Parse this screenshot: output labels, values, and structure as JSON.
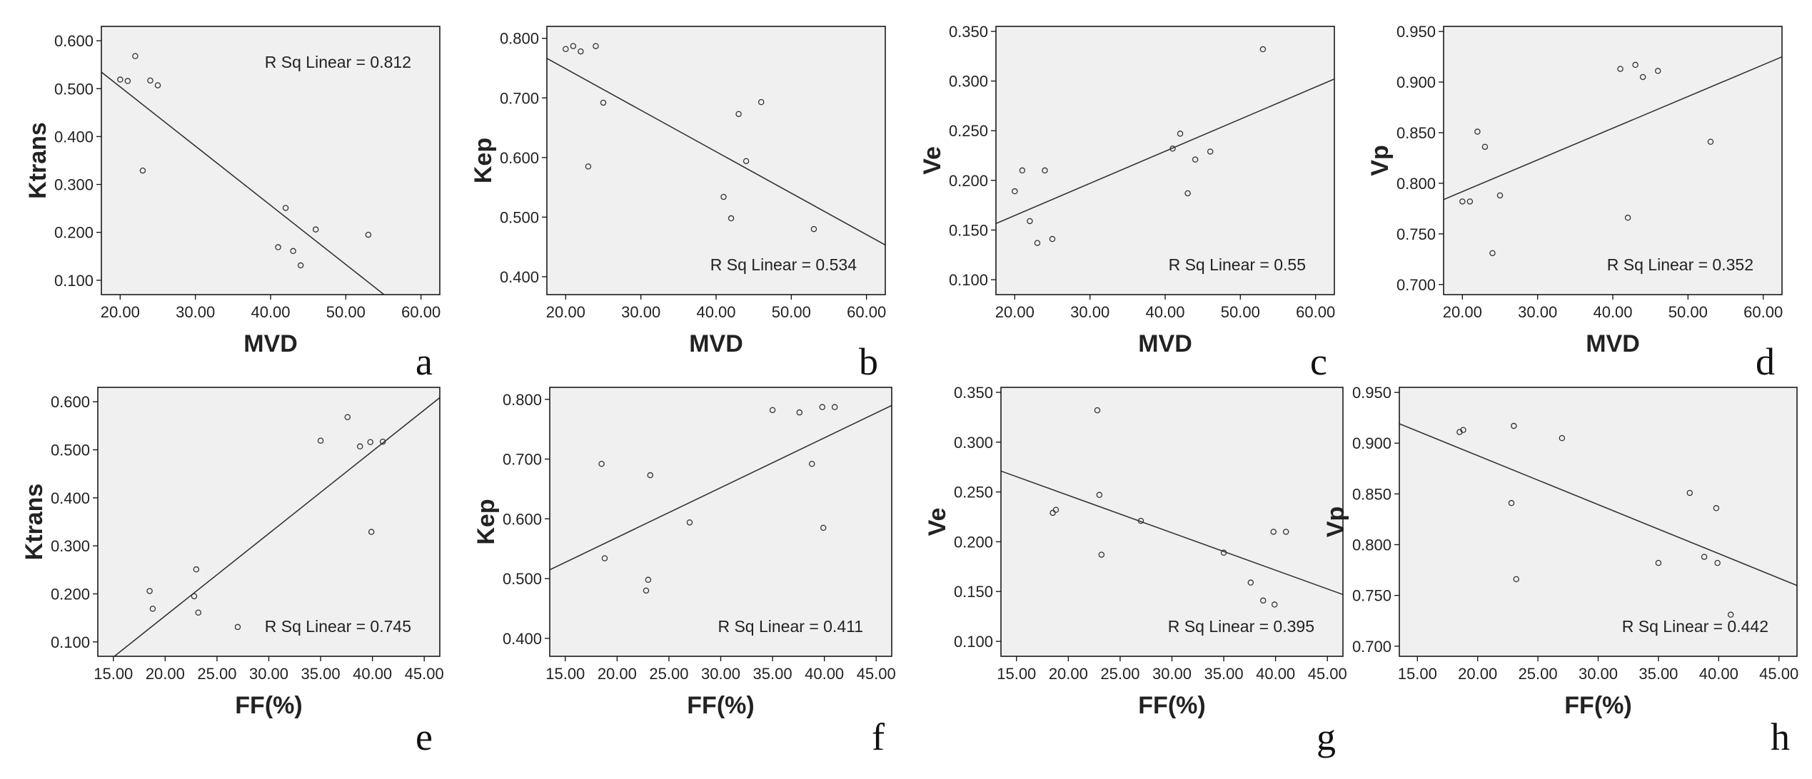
{
  "chart_data": [
    {
      "panel_letter": "a",
      "type": "scatter",
      "xlabel": "MVD",
      "ylabel": "Ktrans",
      "xlim": [
        17.5,
        62.5
      ],
      "ylim": [
        0.07,
        0.63
      ],
      "xticks": [
        20,
        30,
        40,
        50,
        60
      ],
      "xtick_labels": [
        "20.00",
        "30.00",
        "40.00",
        "50.00",
        "60.00"
      ],
      "yticks": [
        0.1,
        0.2,
        0.3,
        0.4,
        0.5,
        0.6
      ],
      "ytick_labels": [
        "0.100",
        "0.200",
        "0.300",
        "0.400",
        "0.500",
        "0.600"
      ],
      "points": [
        [
          20,
          0.519
        ],
        [
          21,
          0.516
        ],
        [
          22,
          0.568
        ],
        [
          23,
          0.329
        ],
        [
          24,
          0.517
        ],
        [
          25,
          0.507
        ],
        [
          41,
          0.169
        ],
        [
          42,
          0.251
        ],
        [
          43,
          0.161
        ],
        [
          44,
          0.131
        ],
        [
          46,
          0.206
        ],
        [
          53,
          0.195
        ]
      ],
      "fit_line": {
        "slope": -0.01236,
        "intercept": 0.7509
      },
      "r_sq_label": "R Sq Linear = 0.812",
      "r_sq_corner": "top-right",
      "grid": false
    },
    {
      "panel_letter": "b",
      "type": "scatter",
      "xlabel": "MVD",
      "ylabel": "Kep",
      "xlim": [
        17.5,
        62.5
      ],
      "ylim": [
        0.37,
        0.82
      ],
      "xticks": [
        20,
        30,
        40,
        50,
        60
      ],
      "xtick_labels": [
        "20.00",
        "30.00",
        "40.00",
        "50.00",
        "60.00"
      ],
      "yticks": [
        0.4,
        0.5,
        0.6,
        0.7,
        0.8
      ],
      "ytick_labels": [
        "0.400",
        "0.500",
        "0.600",
        "0.700",
        "0.800"
      ],
      "points": [
        [
          20,
          0.782
        ],
        [
          21,
          0.787
        ],
        [
          22,
          0.778
        ],
        [
          23,
          0.585
        ],
        [
          24,
          0.787
        ],
        [
          25,
          0.692
        ],
        [
          41,
          0.534
        ],
        [
          42,
          0.498
        ],
        [
          43,
          0.673
        ],
        [
          44,
          0.594
        ],
        [
          46,
          0.693
        ],
        [
          53,
          0.48
        ]
      ],
      "fit_line": {
        "slope": -0.006958,
        "intercept": 0.8881
      },
      "r_sq_label": "R Sq Linear = 0.534",
      "r_sq_corner": "bottom-right",
      "grid": false
    },
    {
      "panel_letter": "c",
      "type": "scatter",
      "xlabel": "MVD",
      "ylabel": "Ve",
      "xlim": [
        17.5,
        62.5
      ],
      "ylim": [
        0.085,
        0.355
      ],
      "xticks": [
        20,
        30,
        40,
        50,
        60
      ],
      "xtick_labels": [
        "20.00",
        "30.00",
        "40.00",
        "50.00",
        "60.00"
      ],
      "yticks": [
        0.1,
        0.15,
        0.2,
        0.25,
        0.3,
        0.35
      ],
      "ytick_labels": [
        "0.100",
        "0.150",
        "0.200",
        "0.250",
        "0.300",
        "0.350"
      ],
      "points": [
        [
          20,
          0.189
        ],
        [
          21,
          0.21
        ],
        [
          22,
          0.159
        ],
        [
          23,
          0.137
        ],
        [
          24,
          0.21
        ],
        [
          25,
          0.141
        ],
        [
          41,
          0.232
        ],
        [
          42,
          0.247
        ],
        [
          43,
          0.187
        ],
        [
          44,
          0.221
        ],
        [
          46,
          0.229
        ],
        [
          53,
          0.332
        ]
      ],
      "fit_line": {
        "slope": 0.003233,
        "intercept": 0.1
      },
      "r_sq_label": "R Sq Linear = 0.55",
      "r_sq_corner": "bottom-right",
      "grid": false
    },
    {
      "panel_letter": "d",
      "type": "scatter",
      "xlabel": "MVD",
      "ylabel": "Vp",
      "xlim": [
        17.5,
        62.5
      ],
      "ylim": [
        0.69,
        0.955
      ],
      "xticks": [
        20,
        30,
        40,
        50,
        60
      ],
      "xtick_labels": [
        "20.00",
        "30.00",
        "40.00",
        "50.00",
        "60.00"
      ],
      "yticks": [
        0.7,
        0.75,
        0.8,
        0.85,
        0.9,
        0.95
      ],
      "ytick_labels": [
        "0.700",
        "0.750",
        "0.800",
        "0.850",
        "0.900",
        "0.950"
      ],
      "points": [
        [
          20,
          0.782
        ],
        [
          21,
          0.782
        ],
        [
          22,
          0.851
        ],
        [
          23,
          0.836
        ],
        [
          24,
          0.731
        ],
        [
          25,
          0.788
        ],
        [
          41,
          0.913
        ],
        [
          42,
          0.766
        ],
        [
          43,
          0.917
        ],
        [
          44,
          0.905
        ],
        [
          46,
          0.911
        ],
        [
          53,
          0.841
        ]
      ],
      "fit_line": {
        "slope": 0.003133,
        "intercept": 0.7291
      },
      "r_sq_label": "R Sq Linear = 0.352",
      "r_sq_corner": "bottom-right",
      "grid": false
    },
    {
      "panel_letter": "e",
      "type": "scatter",
      "xlabel": "FF(%)",
      "ylabel": "Ktrans",
      "xlim": [
        13.5,
        46.5
      ],
      "ylim": [
        0.07,
        0.63
      ],
      "xticks": [
        15,
        20,
        25,
        30,
        35,
        40,
        45
      ],
      "xtick_labels": [
        "15.00",
        "20.00",
        "25.00",
        "30.00",
        "35.00",
        "40.00",
        "45.00"
      ],
      "yticks": [
        0.1,
        0.2,
        0.3,
        0.4,
        0.5,
        0.6
      ],
      "ytick_labels": [
        "0.100",
        "0.200",
        "0.300",
        "0.400",
        "0.500",
        "0.600"
      ],
      "points": [
        [
          18.5,
          0.206
        ],
        [
          18.8,
          0.169
        ],
        [
          22.8,
          0.195
        ],
        [
          23.0,
          0.251
        ],
        [
          23.2,
          0.161
        ],
        [
          27.0,
          0.131
        ],
        [
          35.0,
          0.519
        ],
        [
          37.6,
          0.568
        ],
        [
          38.8,
          0.507
        ],
        [
          39.8,
          0.516
        ],
        [
          39.9,
          0.329
        ],
        [
          41.0,
          0.517
        ]
      ],
      "fit_line": {
        "slope": 0.01715,
        "intercept": -0.1889
      },
      "r_sq_label": "R Sq Linear = 0.745",
      "r_sq_corner": "bottom-right",
      "grid": false
    },
    {
      "panel_letter": "f",
      "type": "scatter",
      "xlabel": "FF(%)",
      "ylabel": "Kep",
      "xlim": [
        13.5,
        46.5
      ],
      "ylim": [
        0.37,
        0.82
      ],
      "xticks": [
        15,
        20,
        25,
        30,
        35,
        40,
        45
      ],
      "xtick_labels": [
        "15.00",
        "20.00",
        "25.00",
        "30.00",
        "35.00",
        "40.00",
        "45.00"
      ],
      "yticks": [
        0.4,
        0.5,
        0.6,
        0.7,
        0.8
      ],
      "ytick_labels": [
        "0.400",
        "0.500",
        "0.600",
        "0.700",
        "0.800"
      ],
      "points": [
        [
          18.5,
          0.692
        ],
        [
          18.8,
          0.534
        ],
        [
          22.8,
          0.48
        ],
        [
          23.0,
          0.498
        ],
        [
          23.2,
          0.673
        ],
        [
          27.0,
          0.594
        ],
        [
          35.0,
          0.782
        ],
        [
          37.6,
          0.778
        ],
        [
          38.8,
          0.692
        ],
        [
          39.8,
          0.787
        ],
        [
          39.9,
          0.585
        ],
        [
          41.0,
          0.787
        ]
      ],
      "fit_line": {
        "slope": 0.008333,
        "intercept": 0.4022
      },
      "r_sq_label": "R Sq Linear = 0.411",
      "r_sq_corner": "bottom-right",
      "grid": false
    },
    {
      "panel_letter": "g",
      "type": "scatter",
      "xlabel": "FF(%)",
      "ylabel": "Ve",
      "xlim": [
        13.5,
        46.5
      ],
      "ylim": [
        0.085,
        0.355
      ],
      "xticks": [
        15,
        20,
        25,
        30,
        35,
        40,
        45
      ],
      "xtick_labels": [
        "15.00",
        "20.00",
        "25.00",
        "30.00",
        "35.00",
        "40.00",
        "45.00"
      ],
      "yticks": [
        0.1,
        0.15,
        0.2,
        0.25,
        0.3,
        0.35
      ],
      "ytick_labels": [
        "0.100",
        "0.150",
        "0.200",
        "0.250",
        "0.300",
        "0.350"
      ],
      "points": [
        [
          18.5,
          0.229
        ],
        [
          18.8,
          0.232
        ],
        [
          22.8,
          0.332
        ],
        [
          23.0,
          0.247
        ],
        [
          23.2,
          0.187
        ],
        [
          27.0,
          0.221
        ],
        [
          35.0,
          0.189
        ],
        [
          37.6,
          0.159
        ],
        [
          38.8,
          0.141
        ],
        [
          39.8,
          0.21
        ],
        [
          39.9,
          0.137
        ],
        [
          41.0,
          0.21
        ]
      ],
      "fit_line": {
        "slope": -0.003757,
        "intercept": 0.3217
      },
      "r_sq_label": "R Sq Linear = 0.395",
      "r_sq_corner": "bottom-right",
      "grid": false
    },
    {
      "panel_letter": "h",
      "type": "scatter",
      "xlabel": "FF(%)",
      "ylabel": "Vp",
      "xlim": [
        13.5,
        46.5
      ],
      "ylim": [
        0.69,
        0.955
      ],
      "xticks": [
        15,
        20,
        25,
        30,
        35,
        40,
        45
      ],
      "xtick_labels": [
        "15.00",
        "20.00",
        "25.00",
        "30.00",
        "35.00",
        "40.00",
        "45.00"
      ],
      "yticks": [
        0.7,
        0.75,
        0.8,
        0.85,
        0.9,
        0.95
      ],
      "ytick_labels": [
        "0.700",
        "0.750",
        "0.800",
        "0.850",
        "0.900",
        "0.950"
      ],
      "points": [
        [
          18.5,
          0.911
        ],
        [
          18.8,
          0.913
        ],
        [
          22.8,
          0.841
        ],
        [
          23.0,
          0.917
        ],
        [
          23.2,
          0.766
        ],
        [
          27.0,
          0.905
        ],
        [
          35.0,
          0.782
        ],
        [
          37.6,
          0.851
        ],
        [
          38.8,
          0.788
        ],
        [
          39.8,
          0.836
        ],
        [
          39.9,
          0.782
        ],
        [
          41.0,
          0.731
        ]
      ],
      "fit_line": {
        "slope": -0.004828,
        "intercept": 0.9843
      },
      "r_sq_label": "R Sq Linear = 0.442",
      "r_sq_corner": "bottom-right",
      "grid": false
    }
  ],
  "colors": {
    "plot_background": "#f0f0f0",
    "frame": "#1a1a1a",
    "fit_line": "#333333",
    "marker": "#333333"
  }
}
